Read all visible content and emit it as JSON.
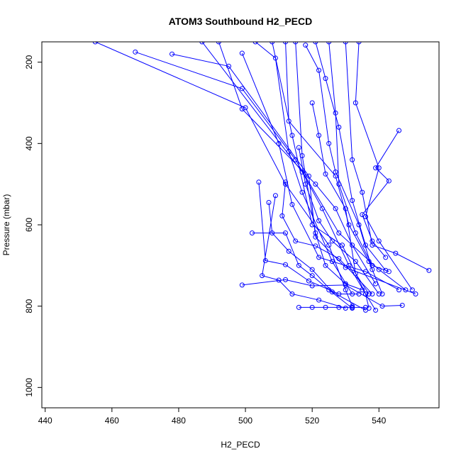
{
  "chart_data": {
    "type": "line",
    "title": "ATOM3 Southbound H2_PECD",
    "xlabel": "H2_PECD",
    "ylabel": "Pressure (mbar)",
    "xlim": [
      439,
      558
    ],
    "ylim": [
      1050,
      150
    ],
    "y_reversed": true,
    "xticks": [
      440,
      460,
      480,
      500,
      520,
      540
    ],
    "yticks": [
      200,
      400,
      600,
      800,
      1000
    ],
    "grid": false,
    "legend": "none",
    "color": "#0000ff",
    "series": [
      {
        "points": [
          [
            455,
            150
          ],
          [
            500,
            312
          ],
          [
            512,
            500
          ],
          [
            525,
            650
          ],
          [
            530,
            760
          ],
          [
            532,
            800
          ]
        ]
      },
      {
        "points": [
          [
            467,
            175
          ],
          [
            499,
            265
          ],
          [
            515,
            440
          ],
          [
            528,
            620
          ],
          [
            540,
            710
          ],
          [
            548,
            760
          ]
        ]
      },
      {
        "points": [
          [
            478,
            180
          ],
          [
            495,
            210
          ],
          [
            519,
            480
          ],
          [
            521,
            630
          ],
          [
            530,
            705
          ],
          [
            551,
            770
          ]
        ]
      },
      {
        "points": [
          [
            487,
            150
          ],
          [
            517,
            470
          ],
          [
            523,
            560
          ],
          [
            531,
            700
          ],
          [
            536,
            770
          ],
          [
            537,
            805
          ]
        ]
      },
      {
        "points": [
          [
            492,
            150
          ],
          [
            499,
            315
          ],
          [
            521,
            500
          ],
          [
            527,
            560
          ],
          [
            532,
            650
          ],
          [
            539,
            745
          ]
        ]
      },
      {
        "points": [
          [
            499,
            178
          ],
          [
            510,
            400
          ],
          [
            514,
            550
          ],
          [
            522,
            680
          ],
          [
            536,
            715
          ],
          [
            546,
            760
          ]
        ]
      },
      {
        "points": [
          [
            503,
            150
          ],
          [
            509,
            190
          ],
          [
            513,
            420
          ],
          [
            517,
            520
          ],
          [
            526,
            690
          ],
          [
            532,
            770
          ]
        ]
      },
      {
        "points": [
          [
            508,
            150
          ],
          [
            514,
            380
          ],
          [
            520,
            600
          ],
          [
            529,
            650
          ],
          [
            536,
            770
          ],
          [
            539,
            810
          ]
        ]
      },
      {
        "points": [
          [
            512,
            150
          ],
          [
            513,
            345
          ],
          [
            527,
            480
          ],
          [
            531,
            600
          ],
          [
            537,
            690
          ],
          [
            541,
            770
          ]
        ]
      },
      {
        "points": [
          [
            515,
            150
          ],
          [
            517,
            430
          ],
          [
            521,
            620
          ],
          [
            524,
            700
          ],
          [
            530,
            745
          ],
          [
            535,
            760
          ]
        ]
      },
      {
        "points": [
          [
            518,
            158
          ],
          [
            522,
            220
          ],
          [
            525,
            400
          ],
          [
            527,
            470
          ],
          [
            534,
            600
          ],
          [
            538,
            710
          ]
        ]
      },
      {
        "points": [
          [
            521,
            150
          ],
          [
            524,
            240
          ],
          [
            528,
            360
          ],
          [
            532,
            540
          ],
          [
            536,
            650
          ],
          [
            542,
            712
          ]
        ]
      },
      {
        "points": [
          [
            525,
            150
          ],
          [
            527,
            325
          ],
          [
            528,
            500
          ],
          [
            533,
            620
          ],
          [
            538,
            700
          ],
          [
            543,
            715
          ]
        ]
      },
      {
        "points": [
          [
            530,
            150
          ],
          [
            532,
            440
          ],
          [
            535,
            520
          ],
          [
            538,
            650
          ],
          [
            545,
            670
          ],
          [
            555,
            712
          ]
        ]
      },
      {
        "points": [
          [
            534,
            150
          ],
          [
            533,
            300
          ],
          [
            540,
            460
          ],
          [
            536,
            580
          ],
          [
            540,
            640
          ],
          [
            550,
            760
          ]
        ]
      },
      {
        "points": [
          [
            546,
            368
          ],
          [
            539,
            460
          ],
          [
            543,
            492
          ],
          [
            535,
            575
          ],
          [
            538,
            640
          ],
          [
            542,
            680
          ]
        ]
      },
      {
        "points": [
          [
            502,
            620
          ],
          [
            512,
            620
          ],
          [
            516,
            700
          ],
          [
            520,
            725
          ],
          [
            525,
            760
          ],
          [
            532,
            805
          ]
        ]
      },
      {
        "points": [
          [
            499,
            748
          ],
          [
            512,
            735
          ],
          [
            520,
            750
          ],
          [
            530,
            748
          ],
          [
            541,
            800
          ],
          [
            547,
            798
          ]
        ]
      },
      {
        "points": [
          [
            504,
            495
          ],
          [
            506,
            688
          ],
          [
            512,
            698
          ],
          [
            519,
            738
          ],
          [
            528,
            770
          ],
          [
            534,
            770
          ]
        ]
      },
      {
        "points": [
          [
            507,
            545
          ],
          [
            508,
            620
          ],
          [
            513,
            665
          ],
          [
            520,
            710
          ],
          [
            526,
            765
          ],
          [
            536,
            810
          ]
        ]
      },
      {
        "points": [
          [
            509,
            528
          ],
          [
            505,
            725
          ],
          [
            510,
            736
          ],
          [
            514,
            770
          ],
          [
            522,
            785
          ],
          [
            530,
            805
          ]
        ]
      },
      {
        "points": [
          [
            512,
            495
          ],
          [
            511,
            578
          ],
          [
            515,
            640
          ],
          [
            521,
            652
          ],
          [
            528,
            683
          ],
          [
            538,
            770
          ]
        ]
      },
      {
        "points": [
          [
            516,
            410
          ],
          [
            518,
            500
          ],
          [
            522,
            590
          ],
          [
            526,
            640
          ],
          [
            533,
            690
          ],
          [
            540,
            770
          ]
        ]
      },
      {
        "points": [
          [
            520,
            300
          ],
          [
            522,
            380
          ],
          [
            524,
            475
          ],
          [
            530,
            560
          ],
          [
            533,
            720
          ],
          [
            537,
            770
          ]
        ]
      },
      {
        "points": [
          [
            516,
            803
          ],
          [
            520,
            803
          ],
          [
            524,
            803
          ],
          [
            528,
            803
          ],
          [
            532,
            803
          ],
          [
            536,
            803
          ]
        ]
      }
    ]
  }
}
